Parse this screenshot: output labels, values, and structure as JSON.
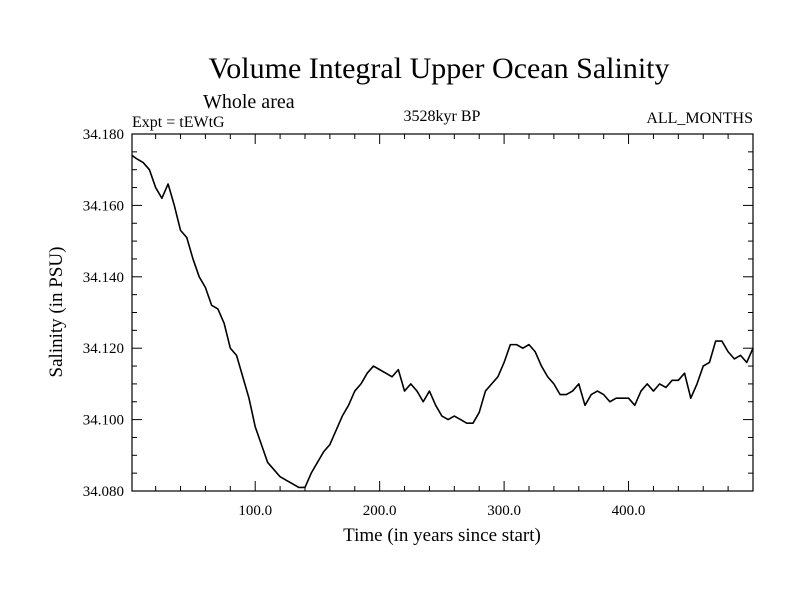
{
  "chart_data": {
    "type": "line",
    "title": "Volume Integral Upper Ocean Salinity",
    "subtitle": "Whole area",
    "left_label": "Expt = tEWtG",
    "center_label": "3528kyr BP",
    "right_label": "ALL_MONTHS",
    "xlabel": "Time (in years since start)",
    "ylabel": "Salinity (in PSU)",
    "xlim": [
      1,
      500
    ],
    "ylim": [
      34.08,
      34.18
    ],
    "x_ticks": [
      100,
      200,
      300,
      400
    ],
    "x_tick_labels": [
      "100.0",
      "200.0",
      "300.0",
      "400.0"
    ],
    "y_ticks": [
      34.08,
      34.1,
      34.12,
      34.14,
      34.16,
      34.18
    ],
    "y_tick_labels": [
      "34.080",
      "34.100",
      "34.120",
      "34.140",
      "34.160",
      "34.180"
    ],
    "grid": false,
    "series": [
      {
        "name": "salinity",
        "x": [
          1,
          5,
          10,
          15,
          20,
          25,
          30,
          35,
          40,
          45,
          50,
          55,
          60,
          65,
          70,
          75,
          80,
          85,
          90,
          95,
          100,
          105,
          110,
          115,
          120,
          125,
          130,
          135,
          140,
          145,
          150,
          155,
          160,
          165,
          170,
          175,
          180,
          185,
          190,
          195,
          200,
          205,
          210,
          215,
          220,
          225,
          230,
          235,
          240,
          245,
          250,
          255,
          260,
          265,
          270,
          275,
          280,
          285,
          290,
          295,
          300,
          305,
          310,
          315,
          320,
          325,
          330,
          335,
          340,
          345,
          350,
          355,
          360,
          365,
          370,
          375,
          380,
          385,
          390,
          395,
          400,
          405,
          410,
          415,
          420,
          425,
          430,
          435,
          440,
          445,
          450,
          455,
          460,
          465,
          470,
          475,
          480,
          485,
          490,
          495,
          500
        ],
        "values": [
          34.174,
          34.173,
          34.172,
          34.17,
          34.165,
          34.162,
          34.166,
          34.16,
          34.153,
          34.151,
          34.145,
          34.14,
          34.137,
          34.132,
          34.131,
          34.127,
          34.12,
          34.118,
          34.112,
          34.106,
          34.098,
          34.093,
          34.088,
          34.086,
          34.084,
          34.083,
          34.082,
          34.081,
          34.081,
          34.085,
          34.088,
          34.091,
          34.093,
          34.097,
          34.101,
          34.104,
          34.108,
          34.11,
          34.113,
          34.115,
          34.114,
          34.113,
          34.112,
          34.114,
          34.108,
          34.11,
          34.108,
          34.105,
          34.108,
          34.104,
          34.101,
          34.1,
          34.101,
          34.1,
          34.099,
          34.099,
          34.102,
          34.108,
          34.11,
          34.112,
          34.116,
          34.121,
          34.121,
          34.12,
          34.121,
          34.119,
          34.115,
          34.112,
          34.11,
          34.107,
          34.107,
          34.108,
          34.11,
          34.104,
          34.107,
          34.108,
          34.107,
          34.105,
          34.106,
          34.106,
          34.106,
          34.104,
          34.108,
          34.11,
          34.108,
          34.11,
          34.109,
          34.111,
          34.111,
          34.113,
          34.106,
          34.11,
          34.115,
          34.116,
          34.122,
          34.122,
          34.119,
          34.117,
          34.118,
          34.116,
          34.12
        ]
      }
    ]
  }
}
